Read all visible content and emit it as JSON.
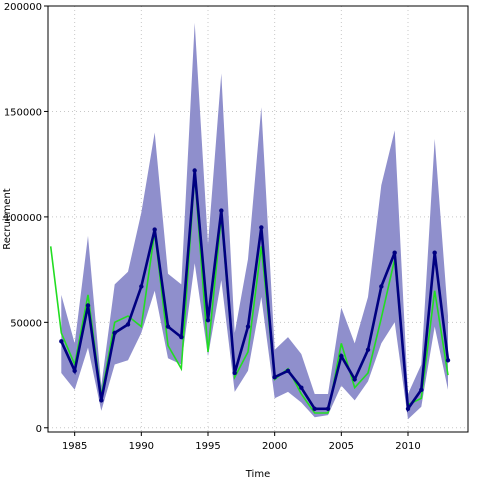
{
  "chart_data": {
    "type": "line",
    "title": "",
    "xlabel": "Time",
    "ylabel": "Recruitment",
    "xlim": [
      1983,
      2014.5
    ],
    "ylim": [
      -2000,
      200000
    ],
    "grid": true,
    "x_ticks": [
      1985,
      1990,
      1995,
      2000,
      2005,
      2010
    ],
    "y_ticks": [
      0,
      50000,
      100000,
      150000,
      200000
    ],
    "colors": {
      "band": "#8f8fcc",
      "estimate": "#000080",
      "observed": "#22dd22",
      "grid": "#c8c8c8",
      "frame": "#000000"
    },
    "band": {
      "name": "",
      "x": [
        1984,
        1985,
        1986,
        1987,
        1988,
        1989,
        1990,
        1991,
        1992,
        1993,
        1994,
        1995,
        1996,
        1997,
        1998,
        1999,
        2000,
        2001,
        2002,
        2003,
        2004,
        2005,
        2006,
        2007,
        2008,
        2009,
        2010,
        2011,
        2012,
        2013
      ],
      "lower": [
        26000,
        18000,
        38000,
        8000,
        30000,
        32000,
        45000,
        65000,
        33000,
        30000,
        78000,
        34000,
        70000,
        17000,
        27000,
        62000,
        14000,
        17000,
        12000,
        5000,
        6000,
        20000,
        13000,
        22000,
        40000,
        50000,
        4000,
        10000,
        48000,
        18000
      ],
      "upper": [
        63000,
        40000,
        91000,
        20000,
        68000,
        74000,
        102000,
        140000,
        73000,
        68000,
        192000,
        87000,
        168000,
        45000,
        80000,
        152000,
        37000,
        43000,
        35000,
        16000,
        16000,
        57000,
        40000,
        62000,
        115000,
        141000,
        16000,
        30000,
        137000,
        53000
      ]
    },
    "series": [
      {
        "name": "",
        "x": [
          1984,
          1985,
          1986,
          1987,
          1988,
          1989,
          1990,
          1991,
          1992,
          1993,
          1994,
          1995,
          1996,
          1997,
          1998,
          1999,
          2000,
          2001,
          2002,
          2003,
          2004,
          2005,
          2006,
          2007,
          2008,
          2009,
          2010,
          2011,
          2012,
          2013
        ],
        "values": [
          41000,
          27000,
          58000,
          13000,
          45000,
          49000,
          67000,
          94000,
          48000,
          43000,
          122000,
          51000,
          103000,
          26000,
          48000,
          95000,
          24000,
          27000,
          19000,
          9000,
          9000,
          34000,
          23000,
          37000,
          67000,
          83000,
          9000,
          18000,
          83000,
          32000
        ]
      },
      {
        "name": "",
        "x": [
          1983.2,
          1984,
          1985,
          1986,
          1987,
          1988,
          1989,
          1990,
          1991,
          1992,
          1993,
          1994,
          1995,
          1996,
          1997,
          1998,
          1999,
          2000,
          2001,
          2002,
          2003,
          2004,
          2005,
          2006,
          2007,
          2008,
          2009,
          2010,
          2011,
          2012,
          2013
        ],
        "values": [
          86000,
          45000,
          30000,
          63000,
          15000,
          50000,
          53000,
          48000,
          93000,
          39000,
          28000,
          120000,
          36000,
          100000,
          24000,
          36000,
          86000,
          23000,
          28000,
          16000,
          7000,
          7000,
          40000,
          19000,
          26000,
          52000,
          80000,
          11000,
          14000,
          65000,
          25000
        ]
      }
    ]
  }
}
